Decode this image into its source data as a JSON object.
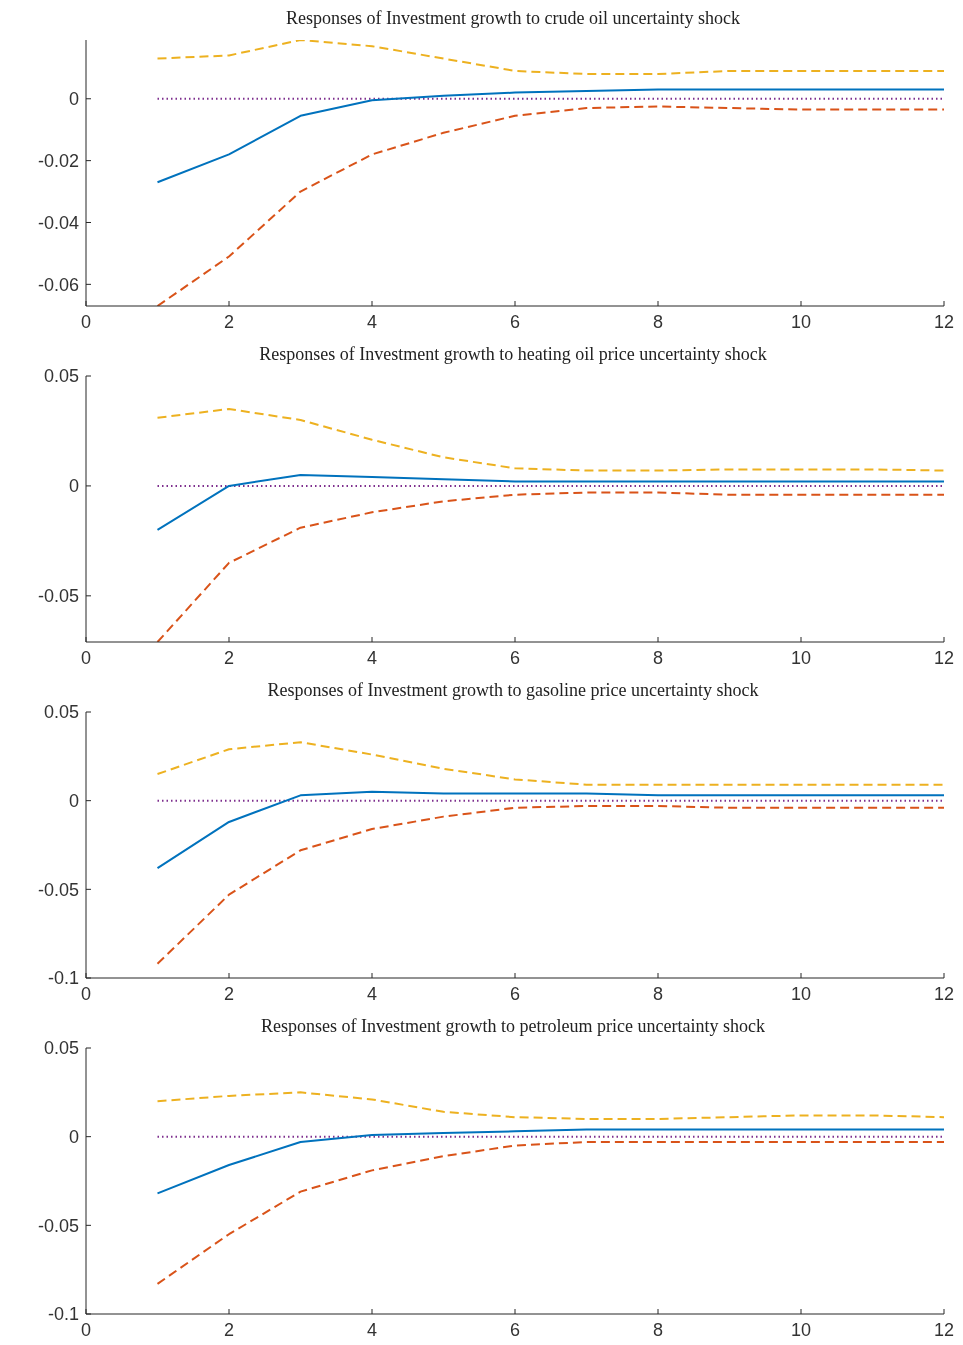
{
  "chart_data": [
    {
      "type": "line",
      "title": "Responses of Investment growth to crude oil uncertainty shock",
      "x": [
        1,
        2,
        3,
        4,
        5,
        6,
        7,
        8,
        9,
        10,
        11,
        12
      ],
      "xlim": [
        0,
        12
      ],
      "xticks": [
        0,
        2,
        4,
        6,
        8,
        10,
        12
      ],
      "ylim": [
        -0.067,
        0.019
      ],
      "yticks": [
        -0.06,
        -0.04,
        -0.02,
        0
      ],
      "grid": false,
      "legend": false,
      "marker": "none",
      "series": [
        {
          "color": "#7e2f8e",
          "line_style": "dotted",
          "values": [
            0,
            0,
            0,
            0,
            0,
            0,
            0,
            0,
            0,
            0,
            0,
            0
          ]
        },
        {
          "color": "#edb120",
          "line_style": "dashed",
          "values": [
            0.013,
            0.014,
            0.019,
            0.017,
            0.013,
            0.009,
            0.008,
            0.008,
            0.009,
            0.009,
            0.009,
            0.009
          ]
        },
        {
          "color": "#d95319",
          "line_style": "dashed",
          "values": [
            -0.067,
            -0.051,
            -0.03,
            -0.018,
            -0.011,
            -0.0055,
            -0.003,
            -0.0025,
            -0.003,
            -0.0035,
            -0.0035,
            -0.0035
          ]
        },
        {
          "color": "#0072bd",
          "line_style": "solid",
          "values": [
            -0.027,
            -0.018,
            -0.0055,
            -0.0005,
            0.001,
            0.002,
            0.0025,
            0.003,
            0.003,
            0.003,
            0.003,
            0.003
          ]
        }
      ]
    },
    {
      "type": "line",
      "title": "Responses of Investment growth to heating oil price uncertainty shock",
      "x": [
        1,
        2,
        3,
        4,
        5,
        6,
        7,
        8,
        9,
        10,
        11,
        12
      ],
      "xlim": [
        0,
        12
      ],
      "xticks": [
        0,
        2,
        4,
        6,
        8,
        10,
        12
      ],
      "ylim": [
        -0.071,
        0.05
      ],
      "yticks": [
        -0.05,
        0,
        0.05
      ],
      "grid": false,
      "legend": false,
      "marker": "none",
      "series": [
        {
          "color": "#7e2f8e",
          "line_style": "dotted",
          "values": [
            0,
            0,
            0,
            0,
            0,
            0,
            0,
            0,
            0,
            0,
            0,
            0
          ]
        },
        {
          "color": "#edb120",
          "line_style": "dashed",
          "values": [
            0.031,
            0.035,
            0.03,
            0.021,
            0.013,
            0.008,
            0.007,
            0.007,
            0.0075,
            0.0075,
            0.0075,
            0.007
          ]
        },
        {
          "color": "#d95319",
          "line_style": "dashed",
          "values": [
            -0.071,
            -0.035,
            -0.019,
            -0.012,
            -0.007,
            -0.004,
            -0.003,
            -0.003,
            -0.004,
            -0.004,
            -0.004,
            -0.004
          ]
        },
        {
          "color": "#0072bd",
          "line_style": "solid",
          "values": [
            -0.02,
            0,
            0.005,
            0.004,
            0.003,
            0.002,
            0.002,
            0.002,
            0.002,
            0.002,
            0.002,
            0.002
          ]
        }
      ]
    },
    {
      "type": "line",
      "title": "Responses of Investment growth to gasoline price uncertainty shock",
      "x": [
        1,
        2,
        3,
        4,
        5,
        6,
        7,
        8,
        9,
        10,
        11,
        12
      ],
      "xlim": [
        0,
        12
      ],
      "xticks": [
        0,
        2,
        4,
        6,
        8,
        10,
        12
      ],
      "ylim": [
        -0.1,
        0.05
      ],
      "yticks": [
        -0.1,
        -0.05,
        0,
        0.05
      ],
      "grid": false,
      "legend": false,
      "marker": "none",
      "series": [
        {
          "color": "#7e2f8e",
          "line_style": "dotted",
          "values": [
            0,
            0,
            0,
            0,
            0,
            0,
            0,
            0,
            0,
            0,
            0,
            0
          ]
        },
        {
          "color": "#edb120",
          "line_style": "dashed",
          "values": [
            0.015,
            0.029,
            0.033,
            0.026,
            0.018,
            0.012,
            0.009,
            0.009,
            0.009,
            0.009,
            0.009,
            0.009
          ]
        },
        {
          "color": "#d95319",
          "line_style": "dashed",
          "values": [
            -0.092,
            -0.053,
            -0.028,
            -0.016,
            -0.009,
            -0.004,
            -0.003,
            -0.003,
            -0.004,
            -0.004,
            -0.004,
            -0.004
          ]
        },
        {
          "color": "#0072bd",
          "line_style": "solid",
          "values": [
            -0.038,
            -0.012,
            0.003,
            0.005,
            0.004,
            0.004,
            0.004,
            0.003,
            0.003,
            0.003,
            0.003,
            0.003
          ]
        }
      ]
    },
    {
      "type": "line",
      "title": "Responses of Investment growth to petroleum price uncertainty shock",
      "x": [
        1,
        2,
        3,
        4,
        5,
        6,
        7,
        8,
        9,
        10,
        11,
        12
      ],
      "xlim": [
        0,
        12
      ],
      "xticks": [
        0,
        2,
        4,
        6,
        8,
        10,
        12
      ],
      "ylim": [
        -0.1,
        0.05
      ],
      "yticks": [
        -0.1,
        -0.05,
        0,
        0.05
      ],
      "grid": false,
      "legend": false,
      "marker": "none",
      "series": [
        {
          "color": "#7e2f8e",
          "line_style": "dotted",
          "values": [
            0,
            0,
            0,
            0,
            0,
            0,
            0,
            0,
            0,
            0,
            0,
            0
          ]
        },
        {
          "color": "#edb120",
          "line_style": "dashed",
          "values": [
            0.02,
            0.023,
            0.025,
            0.021,
            0.014,
            0.011,
            0.01,
            0.01,
            0.011,
            0.012,
            0.012,
            0.011
          ]
        },
        {
          "color": "#d95319",
          "line_style": "dashed",
          "values": [
            -0.083,
            -0.055,
            -0.031,
            -0.019,
            -0.011,
            -0.005,
            -0.003,
            -0.003,
            -0.003,
            -0.003,
            -0.003,
            -0.003
          ]
        },
        {
          "color": "#0072bd",
          "line_style": "solid",
          "values": [
            -0.032,
            -0.016,
            -0.003,
            0.001,
            0.002,
            0.003,
            0.004,
            0.004,
            0.004,
            0.004,
            0.004,
            0.004
          ]
        }
      ]
    }
  ]
}
